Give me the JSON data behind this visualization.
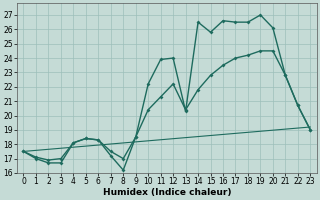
{
  "xlabel": "Humidex (Indice chaleur)",
  "bg_color": "#c5dbd6",
  "grid_color": "#9dbfba",
  "line_color": "#1e6b5e",
  "xlim": [
    -0.5,
    23.5
  ],
  "ylim": [
    16.0,
    27.8
  ],
  "yticks": [
    16,
    17,
    18,
    19,
    20,
    21,
    22,
    23,
    24,
    25,
    26,
    27
  ],
  "xticks": [
    0,
    1,
    2,
    3,
    4,
    5,
    6,
    7,
    8,
    9,
    10,
    11,
    12,
    13,
    14,
    15,
    16,
    17,
    18,
    19,
    20,
    21,
    22,
    23
  ],
  "line1_x": [
    0,
    1,
    2,
    3,
    4,
    5,
    6,
    7,
    8,
    9,
    10,
    11,
    12,
    13,
    14,
    15,
    16,
    17,
    18,
    19,
    20,
    21,
    22,
    23
  ],
  "line1_y": [
    17.5,
    17.0,
    16.7,
    16.7,
    18.1,
    18.4,
    18.3,
    17.2,
    16.2,
    18.5,
    22.2,
    23.9,
    24.0,
    20.3,
    26.5,
    25.8,
    26.6,
    26.5,
    26.5,
    27.0,
    26.1,
    22.8,
    20.7,
    19.0
  ],
  "line2_x": [
    0,
    23
  ],
  "line2_y": [
    17.5,
    19.2
  ],
  "line3_x": [
    0,
    1,
    2,
    3,
    4,
    5,
    6,
    7,
    8,
    9,
    10,
    11,
    12,
    13,
    14,
    15,
    16,
    17,
    18,
    19,
    20,
    21,
    22,
    23
  ],
  "line3_y": [
    17.5,
    17.1,
    16.9,
    17.0,
    18.1,
    18.4,
    18.3,
    17.5,
    17.0,
    18.5,
    20.4,
    21.3,
    22.2,
    20.4,
    21.8,
    22.8,
    23.5,
    24.0,
    24.2,
    24.5,
    24.5,
    22.8,
    20.7,
    19.0
  ],
  "xlabel_fontsize": 6.5,
  "tick_fontsize": 5.5,
  "linewidth": 1.0,
  "markersize": 2.0
}
